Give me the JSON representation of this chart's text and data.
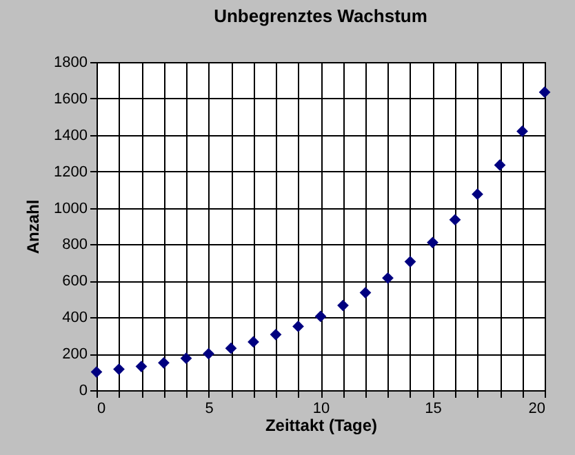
{
  "chart_data": {
    "type": "scatter",
    "title": "Unbegrenztes Wachstum",
    "xlabel": "Zeittakt (Tage)",
    "ylabel": "Anzahl",
    "x": [
      0,
      1,
      2,
      3,
      4,
      5,
      6,
      7,
      8,
      9,
      10,
      11,
      12,
      13,
      14,
      15,
      16,
      17,
      18,
      19,
      20
    ],
    "series": [
      {
        "color": "#000080",
        "values": [
          100,
          115,
          130,
          150,
          175,
          200,
          230,
          265,
          305,
          350,
          405,
          465,
          535,
          615,
          705,
          810,
          935,
          1075,
          1235,
          1420,
          1635
        ]
      }
    ],
    "xlim": [
      0,
      20
    ],
    "xticks": [
      0,
      {
        "value": 1,
        "label": null
      },
      {
        "value": 2,
        "label": null
      },
      {
        "value": 3,
        "label": null
      },
      {
        "value": 4,
        "label": null
      },
      5,
      {
        "value": 6,
        "label": null
      },
      {
        "value": 7,
        "label": null
      },
      {
        "value": 8,
        "label": null
      },
      {
        "value": 9,
        "label": null
      },
      10,
      {
        "value": 11,
        "label": null
      },
      {
        "value": 12,
        "label": null
      },
      {
        "value": 13,
        "label": null
      },
      {
        "value": 14,
        "label": null
      },
      15,
      {
        "value": 16,
        "label": null
      },
      {
        "value": 17,
        "label": null
      },
      {
        "value": 18,
        "label": null
      },
      {
        "value": 19,
        "label": null
      },
      20
    ],
    "ylim": [
      0,
      1800
    ],
    "yticks": [
      0,
      200,
      400,
      600,
      800,
      1000,
      1200,
      1400,
      1600,
      1800
    ],
    "grid": true,
    "marker": "diamond",
    "legend": false
  }
}
